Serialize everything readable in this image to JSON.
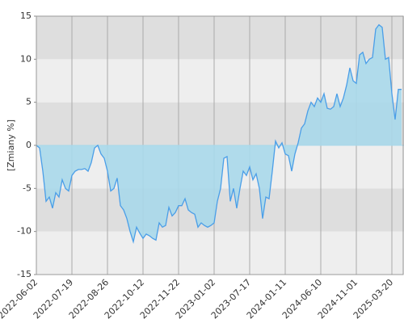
{
  "chart_data": {
    "type": "area",
    "y_label": "[Zmiany %]",
    "categories": [
      "2022-06-02",
      null,
      null,
      null,
      null,
      null,
      null,
      null,
      null,
      null,
      null,
      "2022-07-19",
      null,
      null,
      null,
      null,
      null,
      null,
      null,
      null,
      null,
      null,
      "2022-08-26",
      null,
      null,
      null,
      null,
      null,
      null,
      null,
      null,
      null,
      null,
      "2022-10-12",
      null,
      null,
      null,
      null,
      null,
      null,
      null,
      null,
      null,
      null,
      "2022-11-22",
      null,
      null,
      null,
      null,
      null,
      null,
      null,
      null,
      null,
      null,
      "2023-01-02",
      null,
      null,
      null,
      null,
      null,
      null,
      null,
      null,
      null,
      null,
      "2023-07-17",
      null,
      null,
      null,
      null,
      null,
      null,
      null,
      null,
      null,
      null,
      "2024-01-11",
      null,
      null,
      null,
      null,
      null,
      null,
      null,
      null,
      null,
      null,
      "2024-06-10",
      null,
      null,
      null,
      null,
      null,
      null,
      null,
      null,
      null,
      null,
      "2024-11-01",
      null,
      null,
      null,
      null,
      null,
      null,
      null,
      null,
      null,
      null,
      "2025-03-20",
      null,
      null,
      null
    ],
    "values": [
      0,
      -0.3,
      -3,
      -6.5,
      -6,
      -7.3,
      -5.5,
      -6,
      -4,
      -5,
      -5.3,
      -3.5,
      -3,
      -2.8,
      -2.8,
      -2.7,
      -3,
      -2,
      -0.3,
      0,
      -1,
      -1.5,
      -3,
      -5.3,
      -5,
      -3.8,
      -7,
      -7.5,
      -8.5,
      -10,
      -11.2,
      -9.5,
      -10.2,
      -10.8,
      -10.3,
      -10.5,
      -10.8,
      -11,
      -9,
      -9.5,
      -9.3,
      -7.2,
      -8.2,
      -7.8,
      -7,
      -7,
      -6.2,
      -7.5,
      -7.8,
      -8,
      -9.5,
      -9,
      -9.3,
      -9.5,
      -9.3,
      -9,
      -6.5,
      -5,
      -1.5,
      -1.3,
      -6.5,
      -5,
      -7.3,
      -5,
      -3,
      -3.5,
      -2.5,
      -4,
      -3.3,
      -5,
      -8.5,
      -6,
      -6.2,
      -3,
      0.5,
      -0.3,
      0.3,
      -1,
      -1.2,
      -3,
      -1,
      0.3,
      2,
      2.5,
      4,
      5,
      4.5,
      5.5,
      5,
      6,
      4.3,
      4.2,
      4.5,
      6,
      4.5,
      5.5,
      7,
      9,
      7.5,
      7.2,
      10.5,
      10.8,
      9.5,
      10,
      10.2,
      13.5,
      14,
      13.7,
      10,
      10.2,
      6,
      3,
      6.5,
      6.5
    ],
    "color": "#4a9ee8",
    "fill_color": "#a9d8ea",
    "ylim": [
      -15,
      15
    ],
    "yticks": [
      -15,
      -10,
      -5,
      0,
      5,
      10,
      15
    ],
    "grid": true
  }
}
